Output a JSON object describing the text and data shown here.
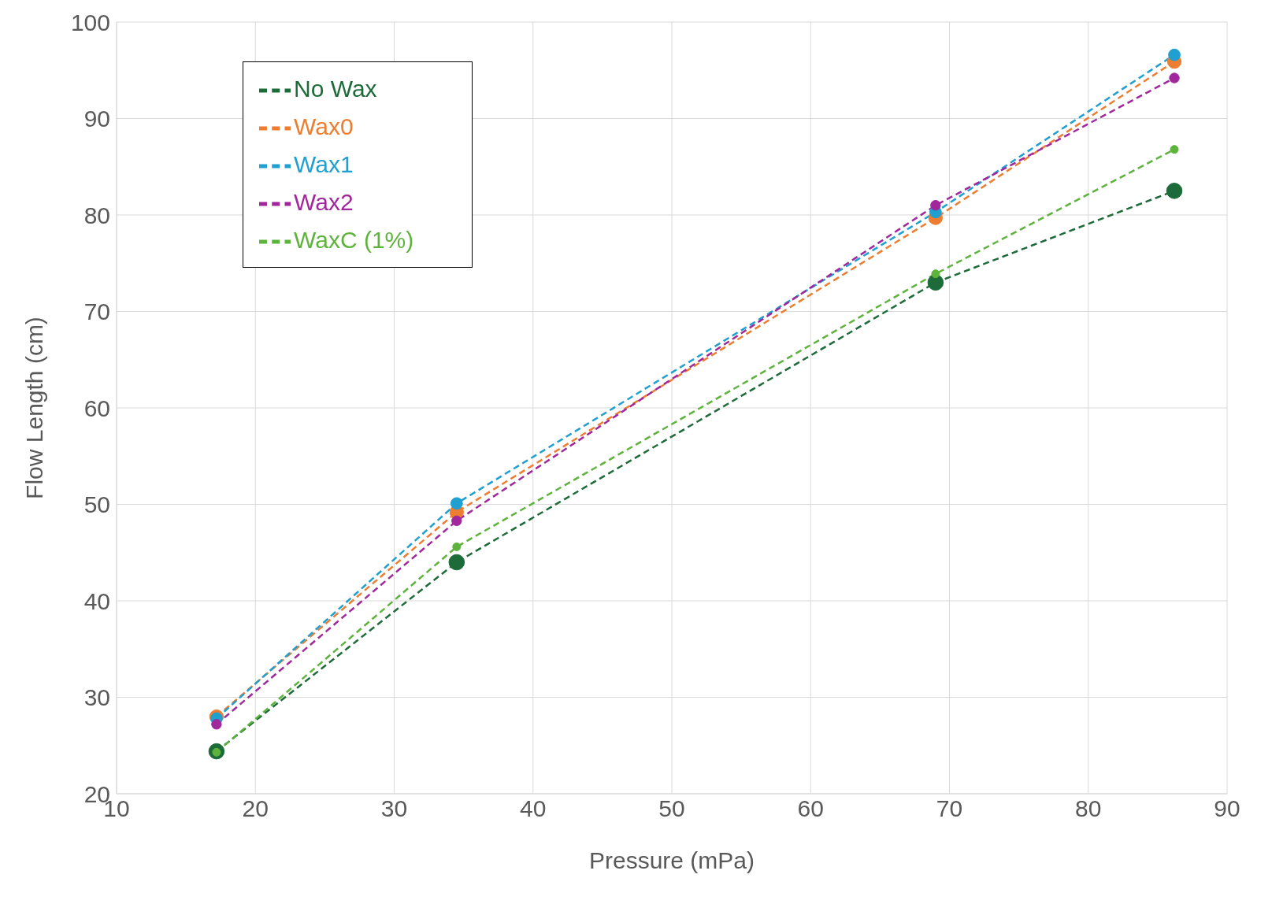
{
  "chart_data": {
    "type": "line",
    "xlabel": "Pressure (mPa)",
    "ylabel": "Flow Length (cm)",
    "x": [
      17.2,
      34.5,
      69,
      86.2
    ],
    "series": [
      {
        "name": "No Wax",
        "color": "#1e6b3a",
        "values": [
          24.4,
          44.0,
          73.0,
          82.5
        ]
      },
      {
        "name": "Wax0",
        "color": "#ed7d31",
        "values": [
          28.0,
          49.2,
          79.7,
          95.9
        ]
      },
      {
        "name": "Wax1",
        "color": "#1fa0d0",
        "values": [
          27.8,
          50.1,
          80.3,
          96.6
        ]
      },
      {
        "name": "Wax2",
        "color": "#a0289c",
        "values": [
          27.2,
          48.3,
          81.0,
          94.2
        ]
      },
      {
        "name": "WaxC (1%)",
        "color": "#5db33c",
        "values": [
          24.3,
          45.6,
          73.9,
          86.8
        ]
      }
    ],
    "xlim": [
      10,
      90
    ],
    "xticks": [
      10,
      20,
      30,
      40,
      50,
      60,
      70,
      80,
      90
    ],
    "ylim": [
      20,
      100
    ],
    "yticks": [
      20,
      30,
      40,
      50,
      60,
      70,
      80,
      90,
      100
    ],
    "grid": true,
    "legend": "top left",
    "marker": "circle",
    "line_style": "dashed"
  }
}
